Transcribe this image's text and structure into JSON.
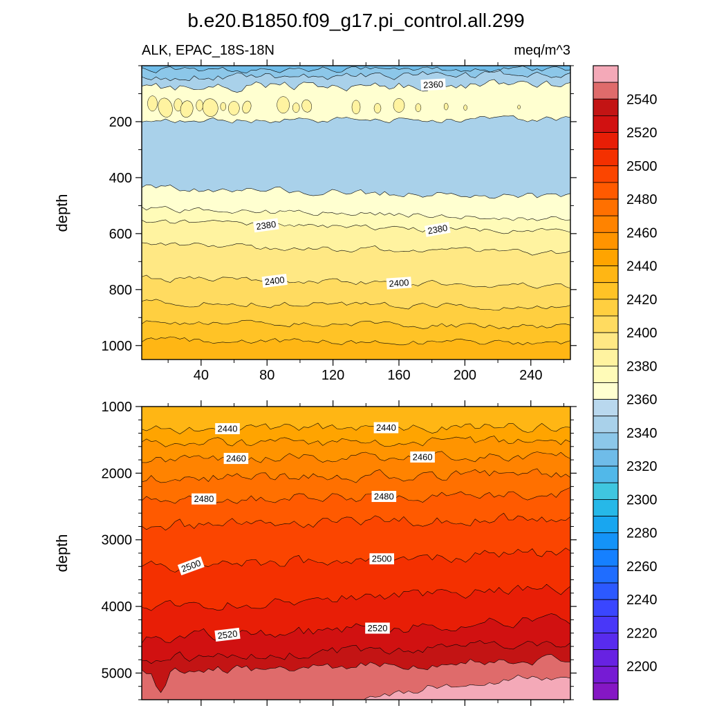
{
  "chart_data": {
    "type": "filled-contour",
    "title": "b.e20.B1850.f09_g17.pi_control.all.299",
    "field_label": "ALK, EPAC_18S-18N",
    "units": "meq/m^3",
    "ylabel": "depth",
    "x_axis": {
      "range": [
        4,
        264
      ],
      "major_ticks": [
        40,
        80,
        120,
        160,
        200,
        240
      ],
      "minor_step": 20
    },
    "upper_panel": {
      "depth_range": [
        0,
        1050
      ],
      "major_ticks": [
        200,
        400,
        600,
        800,
        1000
      ],
      "minor_step": 100,
      "x_labels": true,
      "seed": 1234,
      "blob_color": "#FFF3A0",
      "bottom_color": "#FFB614",
      "bands": [
        {
          "c": "#6FBCE9",
          "dl": 14,
          "dr": 10,
          "a": 5,
          "v": 2330
        },
        {
          "c": "#8CC7E9",
          "dl": 42,
          "dr": 30,
          "a": 7,
          "v": 2340
        },
        {
          "c": "#A9D1EA",
          "dl": 80,
          "dr": 62,
          "a": 8,
          "v": 2360,
          "labels": [
            {
              "t": "2360",
              "x": 0.68,
              "rot": -3
            }
          ]
        },
        {
          "c": "#FFFFD0",
          "dl": 198,
          "dr": 190,
          "a": 5,
          "v": 2360
        },
        {
          "c": "#A9D1EA",
          "dl": 436,
          "dr": 470,
          "a": 6,
          "v": 2360
        },
        {
          "c": "#FFFFD0",
          "dl": 512,
          "dr": 548,
          "a": 5,
          "v": 2370
        },
        {
          "c": "#FFFBB8",
          "dl": 560,
          "dr": 596,
          "a": 5,
          "v": 2380,
          "labels": [
            {
              "t": "2380",
              "x": 0.29,
              "rot": -8
            },
            {
              "t": "2380",
              "x": 0.69,
              "rot": -10
            }
          ]
        },
        {
          "c": "#FFF3A0",
          "dl": 640,
          "dr": 672,
          "a": 5,
          "v": 2390
        },
        {
          "c": "#FFE884",
          "dl": 760,
          "dr": 788,
          "a": 5,
          "v": 2400,
          "labels": [
            {
              "t": "2400",
              "x": 0.31,
              "rot": -7
            },
            {
              "t": "2400",
              "x": 0.6,
              "rot": -4
            }
          ]
        },
        {
          "c": "#FFDB60",
          "dl": 846,
          "dr": 862,
          "a": 5,
          "v": 2410
        },
        {
          "c": "#FFCF40",
          "dl": 916,
          "dr": 932,
          "a": 5,
          "v": 2420
        },
        {
          "c": "#FFC326",
          "dl": 980,
          "dr": 992,
          "a": 5,
          "v": 2430
        }
      ],
      "blobs": [
        [
          0.025,
          135,
          7,
          11,
          0
        ],
        [
          0.055,
          150,
          10,
          14,
          -15
        ],
        [
          0.085,
          140,
          6,
          9,
          0
        ],
        [
          0.105,
          155,
          9,
          12,
          10
        ],
        [
          0.135,
          142,
          5,
          8,
          0
        ],
        [
          0.16,
          150,
          11,
          13,
          -10
        ],
        [
          0.19,
          146,
          4,
          6,
          0
        ],
        [
          0.215,
          152,
          8,
          10,
          0
        ],
        [
          0.245,
          148,
          6,
          9,
          15
        ],
        [
          0.33,
          140,
          9,
          12,
          0
        ],
        [
          0.36,
          150,
          5,
          7,
          0
        ],
        [
          0.385,
          144,
          7,
          9,
          -12
        ],
        [
          0.5,
          148,
          6,
          10,
          0
        ],
        [
          0.55,
          152,
          5,
          7,
          0
        ],
        [
          0.6,
          142,
          8,
          10,
          0
        ],
        [
          0.645,
          150,
          4,
          6,
          0
        ],
        [
          0.71,
          146,
          3,
          5,
          0
        ],
        [
          0.755,
          150,
          2.5,
          4,
          0
        ],
        [
          0.88,
          148,
          2,
          3,
          0
        ]
      ]
    },
    "lower_panel": {
      "depth_range": [
        1000,
        5400
      ],
      "major_ticks": [
        1000,
        2000,
        3000,
        4000,
        5000
      ],
      "minor_step": 200,
      "x_labels": false,
      "seed": 5678,
      "bottom_color": "#F4A9B8",
      "bands": [
        {
          "c": "#FFB614",
          "dl": 1340,
          "dr": 1300,
          "a": 8,
          "v": 2440,
          "labels": [
            {
              "t": "2440",
              "x": 0.2,
              "rot": 0
            },
            {
              "t": "2440",
              "x": 0.57,
              "rot": 0
            }
          ]
        },
        {
          "c": "#FFA400",
          "dl": 1560,
          "dr": 1520,
          "a": 8,
          "v": 2450
        },
        {
          "c": "#FF9400",
          "dl": 1790,
          "dr": 1740,
          "a": 8,
          "v": 2460,
          "labels": [
            {
              "t": "2460",
              "x": 0.22,
              "rot": 0
            },
            {
              "t": "2460",
              "x": 0.655,
              "rot": 0
            }
          ]
        },
        {
          "c": "#FF8300",
          "dl": 2070,
          "dr": 2010,
          "a": 9,
          "v": 2470
        },
        {
          "c": "#FF7000",
          "dl": 2400,
          "dr": 2310,
          "a": 9,
          "v": 2480,
          "labels": [
            {
              "t": "2480",
              "x": 0.145,
              "rot": 0
            },
            {
              "t": "2480",
              "x": 0.565,
              "rot": 0
            }
          ]
        },
        {
          "c": "#FF5A00",
          "dl": 2800,
          "dr": 2660,
          "a": 10,
          "v": 2490
        },
        {
          "c": "#FB4500",
          "dl": 3420,
          "dr": 3180,
          "a": 10,
          "v": 2500,
          "labels": [
            {
              "t": "2500",
              "x": 0.115,
              "rot": -20
            },
            {
              "t": "2500",
              "x": 0.56,
              "rot": 0
            }
          ]
        },
        {
          "c": "#F43000",
          "dl": 4000,
          "dr": 3720,
          "a": 10,
          "v": 2510
        },
        {
          "c": "#E81E06",
          "dl": 4480,
          "dr": 4200,
          "a": 10,
          "v": 2520,
          "labels": [
            {
              "t": "2520",
              "x": 0.2,
              "rot": -7
            },
            {
              "t": "2520",
              "x": 0.55,
              "rot": 0
            }
          ]
        },
        {
          "c": "#D11111",
          "dl": 4780,
          "dr": 4560,
          "a": 9,
          "v": 2530
        },
        {
          "c": "#C31414",
          "pts": [
            [
              0,
              4960
            ],
            [
              0.02,
              4990
            ],
            [
              0.045,
              5330
            ],
            [
              0.07,
              4990
            ],
            [
              0.3,
              4920
            ],
            [
              0.6,
              4860
            ],
            [
              1,
              4800
            ]
          ],
          "a": 8,
          "v": 2540
        },
        {
          "c": "#DF6B6B",
          "pts": [
            [
              0,
              5500
            ],
            [
              0.4,
              5500
            ],
            [
              0.52,
              5390
            ],
            [
              0.7,
              5180
            ],
            [
              0.85,
              5080
            ],
            [
              1,
              5040
            ]
          ],
          "a": 7,
          "v": 2550
        }
      ]
    },
    "colorbar": {
      "min": 2190,
      "max": 2550,
      "step": 10,
      "tick_labels": [
        2540,
        2520,
        2500,
        2480,
        2460,
        2440,
        2420,
        2400,
        2380,
        2360,
        2340,
        2320,
        2300,
        2280,
        2260,
        2240,
        2220,
        2200
      ],
      "colors_top_to_bottom": [
        "#F4A9B8",
        "#DF6B6B",
        "#C31414",
        "#D11111",
        "#E81E06",
        "#F43000",
        "#FB4500",
        "#FF5A00",
        "#FF7000",
        "#FF8300",
        "#FF9400",
        "#FFA400",
        "#FFB614",
        "#FFC326",
        "#FFCF40",
        "#FFDB60",
        "#FFE884",
        "#FFF3A0",
        "#FFFBB8",
        "#FFFFD0",
        "#B9D8EE",
        "#A9D1EA",
        "#8CC7E9",
        "#6FBCE9",
        "#51B8E9",
        "#3FC6E0",
        "#26B8E8",
        "#18A6F0",
        "#1493F8",
        "#1580FF",
        "#1F6DFF",
        "#2C59FF",
        "#3A46FF",
        "#4937F8",
        "#582BEE",
        "#6722E2",
        "#761BD4",
        "#8517C4"
      ]
    }
  }
}
